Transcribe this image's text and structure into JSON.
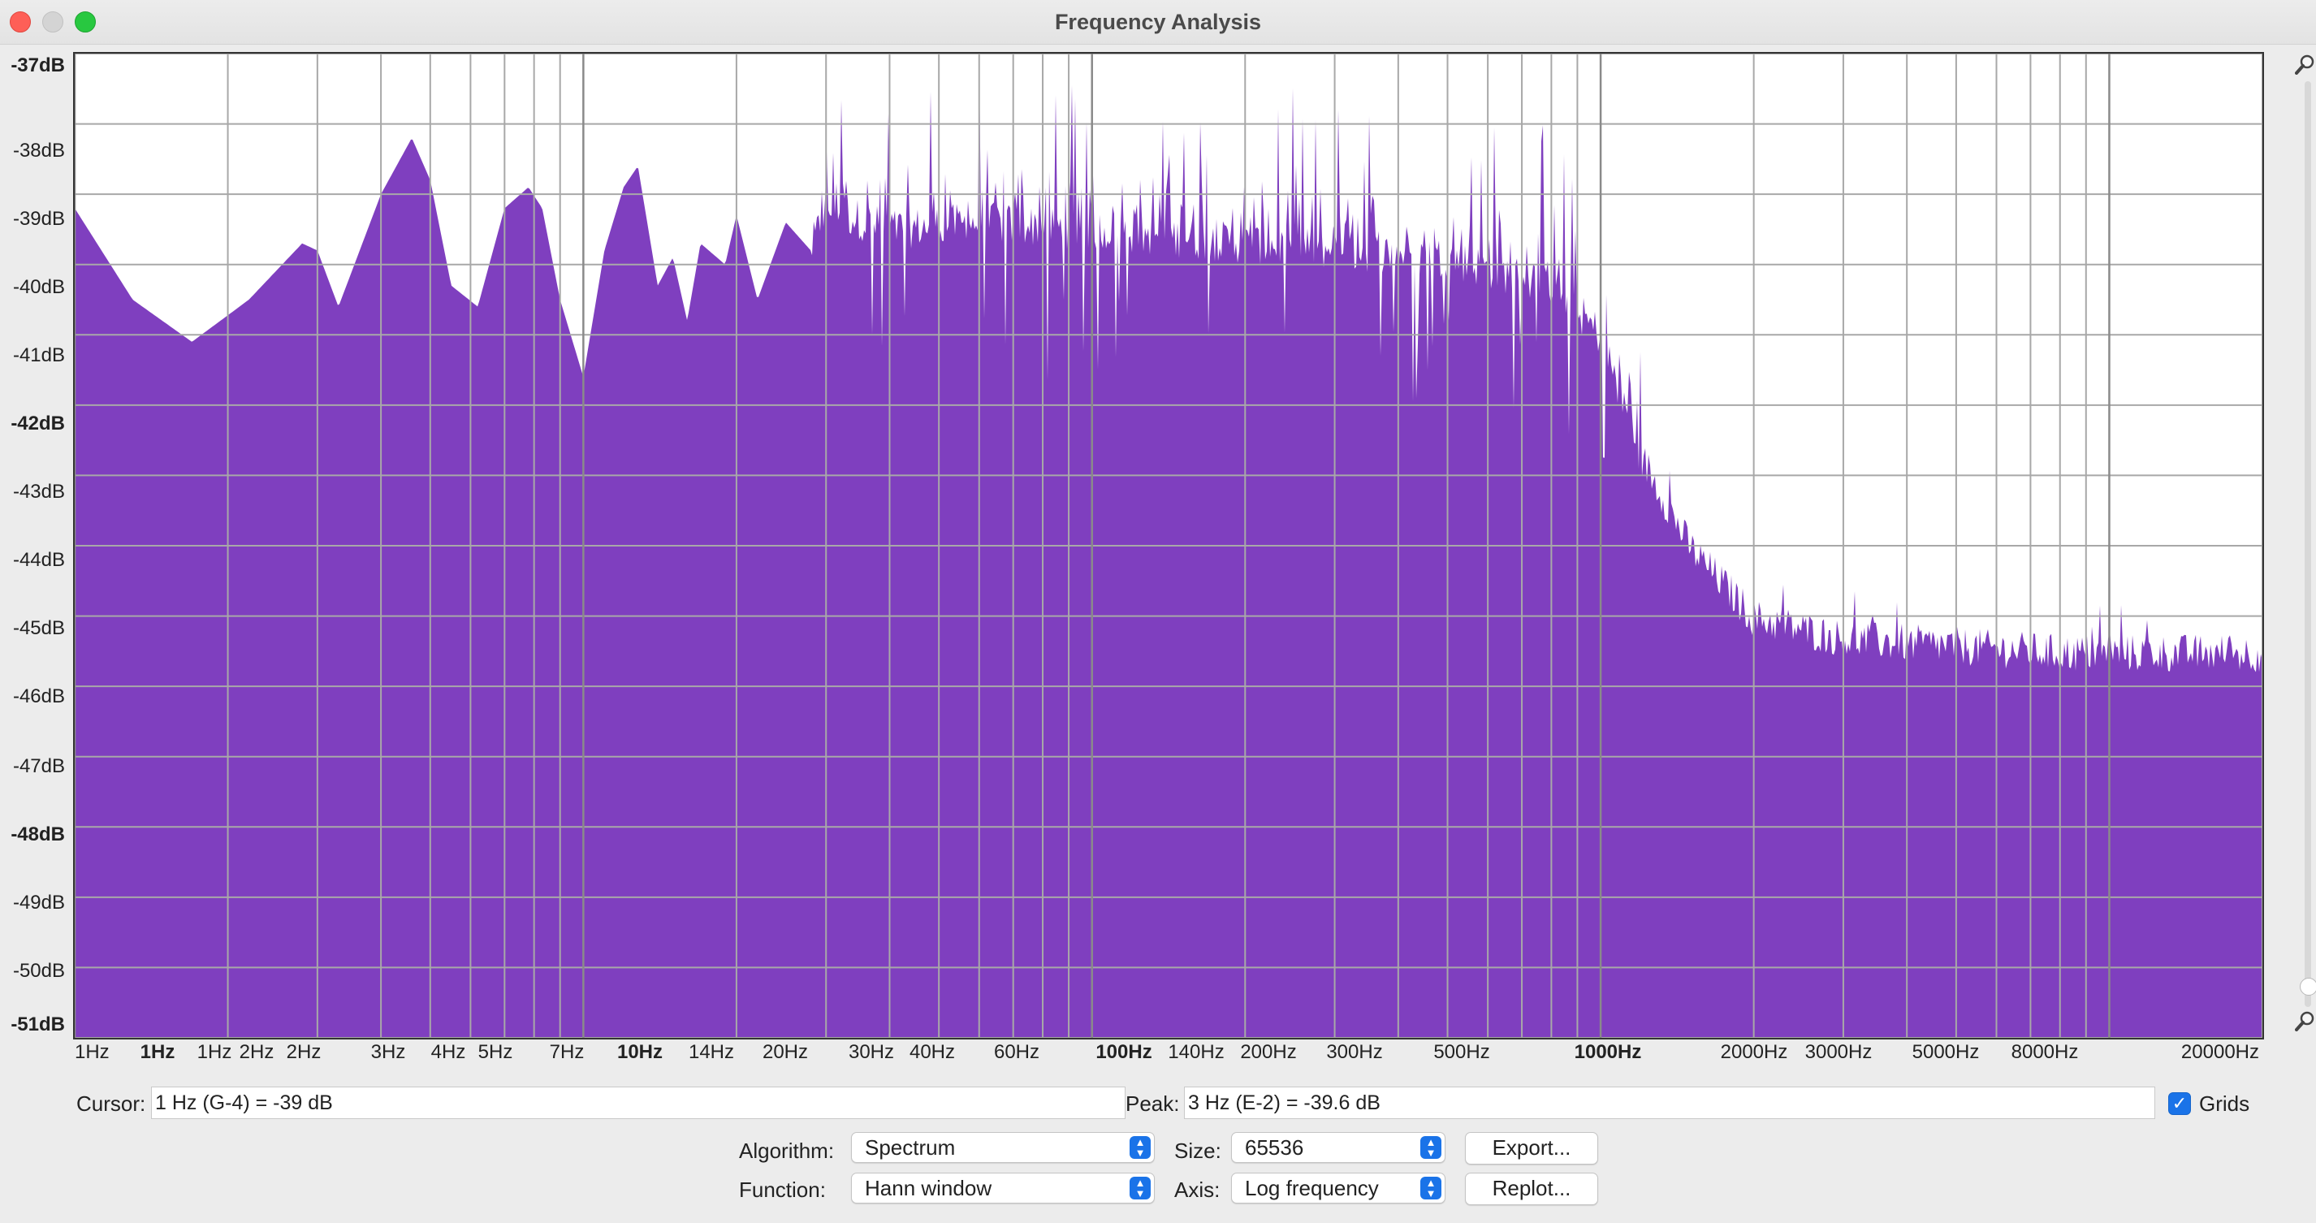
{
  "window": {
    "title": "Frequency Analysis"
  },
  "plot": {
    "y_labels": [
      "-37dB",
      "-38dB",
      "-39dB",
      "-40dB",
      "-41dB",
      "-42dB",
      "-43dB",
      "-44dB",
      "-45dB",
      "-46dB",
      "-47dB",
      "-48dB",
      "-49dB",
      "-50dB",
      "-51dB"
    ],
    "x_labels": [
      "1Hz",
      "1Hz",
      "1Hz",
      "2Hz",
      "2Hz",
      "3Hz",
      "4Hz",
      "5Hz",
      "7Hz",
      "10Hz",
      "14Hz",
      "20Hz",
      "30Hz",
      "40Hz",
      "60Hz",
      "100Hz",
      "140Hz",
      "200Hz",
      "300Hz",
      "500Hz",
      "1000Hz",
      "2000Hz",
      "3000Hz",
      "5000Hz",
      "8000Hz",
      "20000Hz"
    ],
    "fill_color": "#7f3fbf",
    "grid_color": "#a8a8a8",
    "major_grid_color": "#8a8a8a"
  },
  "chart_data": {
    "type": "area",
    "x_scale": "log",
    "xlim_hz": [
      1,
      20000
    ],
    "ylim_db": [
      -51,
      -37
    ],
    "grid": true,
    "x_hz": [
      1,
      1.3,
      1.7,
      2.2,
      2.8,
      3,
      3.3,
      4,
      4.6,
      5,
      5.5,
      6.2,
      7,
      7.8,
      8.3,
      9,
      10,
      11,
      12,
      12.8,
      14,
      15,
      16,
      17,
      19,
      20,
      22,
      25,
      28,
      30,
      40,
      60,
      100,
      200,
      500,
      800,
      1000,
      1200,
      1500,
      2000,
      3000,
      5000,
      8000,
      20000
    ],
    "y_db": [
      -39.2,
      -40.5,
      -41.1,
      -40.5,
      -39.7,
      -39.8,
      -40.6,
      -39.0,
      -38.2,
      -38.8,
      -40.3,
      -40.6,
      -39.2,
      -38.9,
      -39.2,
      -40.5,
      -41.6,
      -39.8,
      -38.9,
      -38.6,
      -40.3,
      -39.9,
      -40.8,
      -39.7,
      -40.0,
      -39.3,
      -40.5,
      -39.4,
      -39.8,
      -39.2,
      -39.5,
      -39.4,
      -39.5,
      -39.7,
      -39.9,
      -40.3,
      -41.0,
      -42.7,
      -44.0,
      -45.0,
      -45.3,
      -45.4,
      -45.5,
      -45.5
    ],
    "peak_note": "3 Hz (E-2) = -39.6 dB"
  },
  "controls": {
    "cursor_label": "Cursor:",
    "cursor_value": "1 Hz (G-4) = -39 dB",
    "peak_label": "Peak:",
    "peak_value": "3 Hz (E-2) = -39.6 dB",
    "grids_label": "Grids",
    "grids_checked": true,
    "algorithm_label": "Algorithm:",
    "algorithm_value": "Spectrum",
    "function_label": "Function:",
    "function_value": "Hann window",
    "size_label": "Size:",
    "size_value": "65536",
    "axis_label": "Axis:",
    "axis_value": "Log frequency",
    "export_label": "Export...",
    "replot_label": "Replot..."
  }
}
